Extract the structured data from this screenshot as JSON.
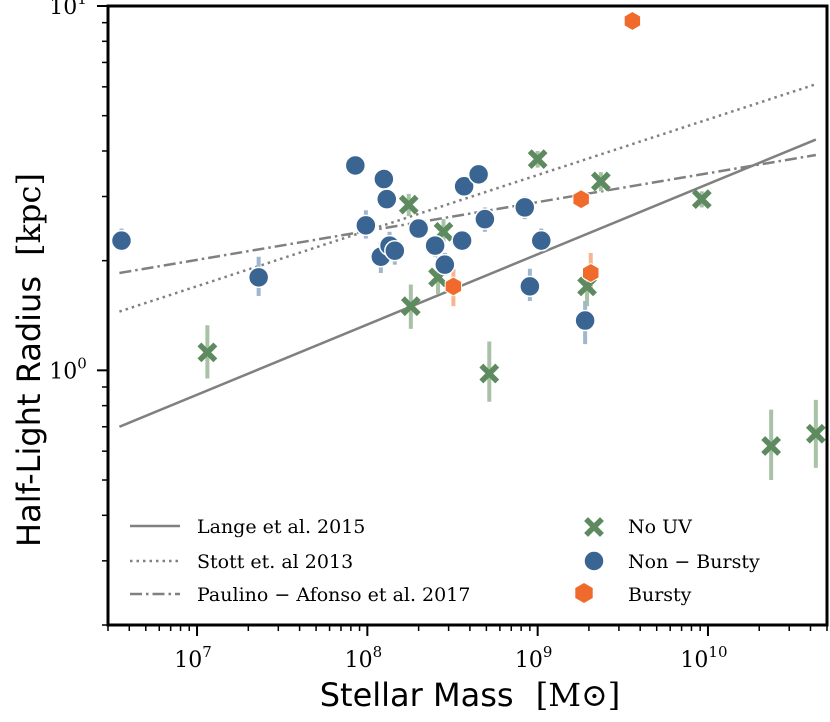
{
  "chart_data": {
    "type": "scatter",
    "xscale": "log",
    "yscale": "log",
    "xlim": [
      3000000.0,
      50000000000.0
    ],
    "ylim": [
      0.2,
      10
    ],
    "xlabel": "Stellar Mass",
    "xlabel_unit": "[M⊙]",
    "ylabel": "Half-Light Radius",
    "ylabel_unit": "[kpc]",
    "x_ticks": [
      {
        "value": 10000000.0,
        "base": "10",
        "exp": "7"
      },
      {
        "value": 100000000.0,
        "base": "10",
        "exp": "8"
      },
      {
        "value": 1000000000.0,
        "base": "10",
        "exp": "9"
      },
      {
        "value": 10000000000.0,
        "base": "10",
        "exp": "10"
      }
    ],
    "y_ticks": [
      {
        "value": 1,
        "label": "10",
        "exp": "0"
      },
      {
        "value": 10,
        "label": "10",
        "exp": "1"
      }
    ],
    "lines": [
      {
        "name": "Lange et al. 2015",
        "style": "solid",
        "color": "#808080",
        "x": [
          3500000.0,
          43000000000.0
        ],
        "y": [
          0.7,
          4.3
        ]
      },
      {
        "name": "Stott et. al 2013",
        "style": "dotted",
        "color": "#808080",
        "x": [
          3500000.0,
          43000000000.0
        ],
        "y": [
          1.45,
          6.1
        ]
      },
      {
        "name": "Paulino − Afonso et al. 2017",
        "style": "dashdot",
        "color": "#808080",
        "x": [
          3500000.0,
          43000000000.0
        ],
        "y": [
          1.85,
          3.9
        ]
      }
    ],
    "series": [
      {
        "name": "No UV",
        "marker": "x",
        "color": "#5e8a60",
        "errcolor": "#a9c2a6",
        "points": [
          {
            "x": 11500000.0,
            "y": 1.12,
            "lo": 0.95,
            "hi": 1.33
          },
          {
            "x": 175000000.0,
            "y": 2.85,
            "lo": 2.65,
            "hi": 3.05
          },
          {
            "x": 180000000.0,
            "y": 1.5,
            "lo": 1.3,
            "hi": 1.72
          },
          {
            "x": 260000000.0,
            "y": 1.8,
            "lo": 1.62,
            "hi": 2.05
          },
          {
            "x": 280000000.0,
            "y": 2.4,
            "lo": 2.2,
            "hi": 2.6
          },
          {
            "x": 520000000.0,
            "y": 0.98,
            "lo": 0.82,
            "hi": 1.2
          },
          {
            "x": 1000000000.0,
            "y": 3.8,
            "lo": 3.6,
            "hi": 4.0
          },
          {
            "x": 1950000000.0,
            "y": 1.7,
            "lo": 1.5,
            "hi": 1.9
          },
          {
            "x": 2350000000.0,
            "y": 3.3,
            "lo": 3.1,
            "hi": 3.5
          },
          {
            "x": 9200000000.0,
            "y": 2.95,
            "lo": 2.8,
            "hi": 3.1
          },
          {
            "x": 23500000000.0,
            "y": 0.62,
            "lo": 0.5,
            "hi": 0.78
          },
          {
            "x": 43000000000.0,
            "y": 0.67,
            "lo": 0.54,
            "hi": 0.83
          }
        ]
      },
      {
        "name": "Non − Bursty",
        "marker": "circle",
        "color": "#3a6592",
        "errcolor": "#9fb6cc",
        "points": [
          {
            "x": 3600000.0,
            "y": 2.27,
            "lo": 2.12,
            "hi": 2.45
          },
          {
            "x": 23000000.0,
            "y": 1.8,
            "lo": 1.6,
            "hi": 2.05
          },
          {
            "x": 85000000.0,
            "y": 3.65,
            "lo": 3.5,
            "hi": 3.8
          },
          {
            "x": 98000000.0,
            "y": 2.5,
            "lo": 2.3,
            "hi": 2.75
          },
          {
            "x": 120000000.0,
            "y": 2.05,
            "lo": 1.85,
            "hi": 2.25
          },
          {
            "x": 125000000.0,
            "y": 3.35,
            "lo": 3.2,
            "hi": 3.5
          },
          {
            "x": 130000000.0,
            "y": 2.95,
            "lo": 2.8,
            "hi": 3.1
          },
          {
            "x": 135000000.0,
            "y": 2.2,
            "lo": 2.0,
            "hi": 2.4
          },
          {
            "x": 145000000.0,
            "y": 2.13,
            "lo": 1.95,
            "hi": 2.3
          },
          {
            "x": 200000000.0,
            "y": 2.45,
            "lo": 2.3,
            "hi": 2.6
          },
          {
            "x": 250000000.0,
            "y": 2.2,
            "lo": 2.05,
            "hi": 2.35
          },
          {
            "x": 370000000.0,
            "y": 3.2,
            "lo": 3.05,
            "hi": 3.35
          },
          {
            "x": 360000000.0,
            "y": 2.27,
            "lo": 2.15,
            "hi": 2.4
          },
          {
            "x": 450000000.0,
            "y": 3.45,
            "lo": 3.3,
            "hi": 3.6
          },
          {
            "x": 490000000.0,
            "y": 2.6,
            "lo": 2.4,
            "hi": 2.8
          },
          {
            "x": 285000000.0,
            "y": 1.95,
            "lo": 1.82,
            "hi": 2.1
          },
          {
            "x": 840000000.0,
            "y": 2.8,
            "lo": 2.6,
            "hi": 3.0
          },
          {
            "x": 900000000.0,
            "y": 1.7,
            "lo": 1.55,
            "hi": 1.9
          },
          {
            "x": 1050000000.0,
            "y": 2.27,
            "lo": 2.12,
            "hi": 2.45
          },
          {
            "x": 1900000000.0,
            "y": 1.37,
            "lo": 1.18,
            "hi": 1.55
          }
        ]
      },
      {
        "name": "Bursty",
        "marker": "hexagon",
        "color": "#f06a2c",
        "errcolor": "#f5b591",
        "points": [
          {
            "x": 320000000.0,
            "y": 1.7,
            "lo": 1.5,
            "hi": 1.9
          },
          {
            "x": 1800000000.0,
            "y": 2.95,
            "lo": 2.8,
            "hi": 3.1
          },
          {
            "x": 2050000000.0,
            "y": 1.85,
            "lo": 1.65,
            "hi": 2.1
          },
          {
            "x": 3600000000.0,
            "y": 9.1,
            "lo": 9.0,
            "hi": 9.2
          }
        ]
      }
    ],
    "legend": {
      "placement": "lower-left",
      "line_entries": [
        "Lange et al. 2015",
        "Stott et. al 2013",
        "Paulino − Afonso et al. 2017"
      ],
      "marker_entries": [
        "No UV",
        "Non − Bursty",
        "Bursty"
      ]
    }
  }
}
